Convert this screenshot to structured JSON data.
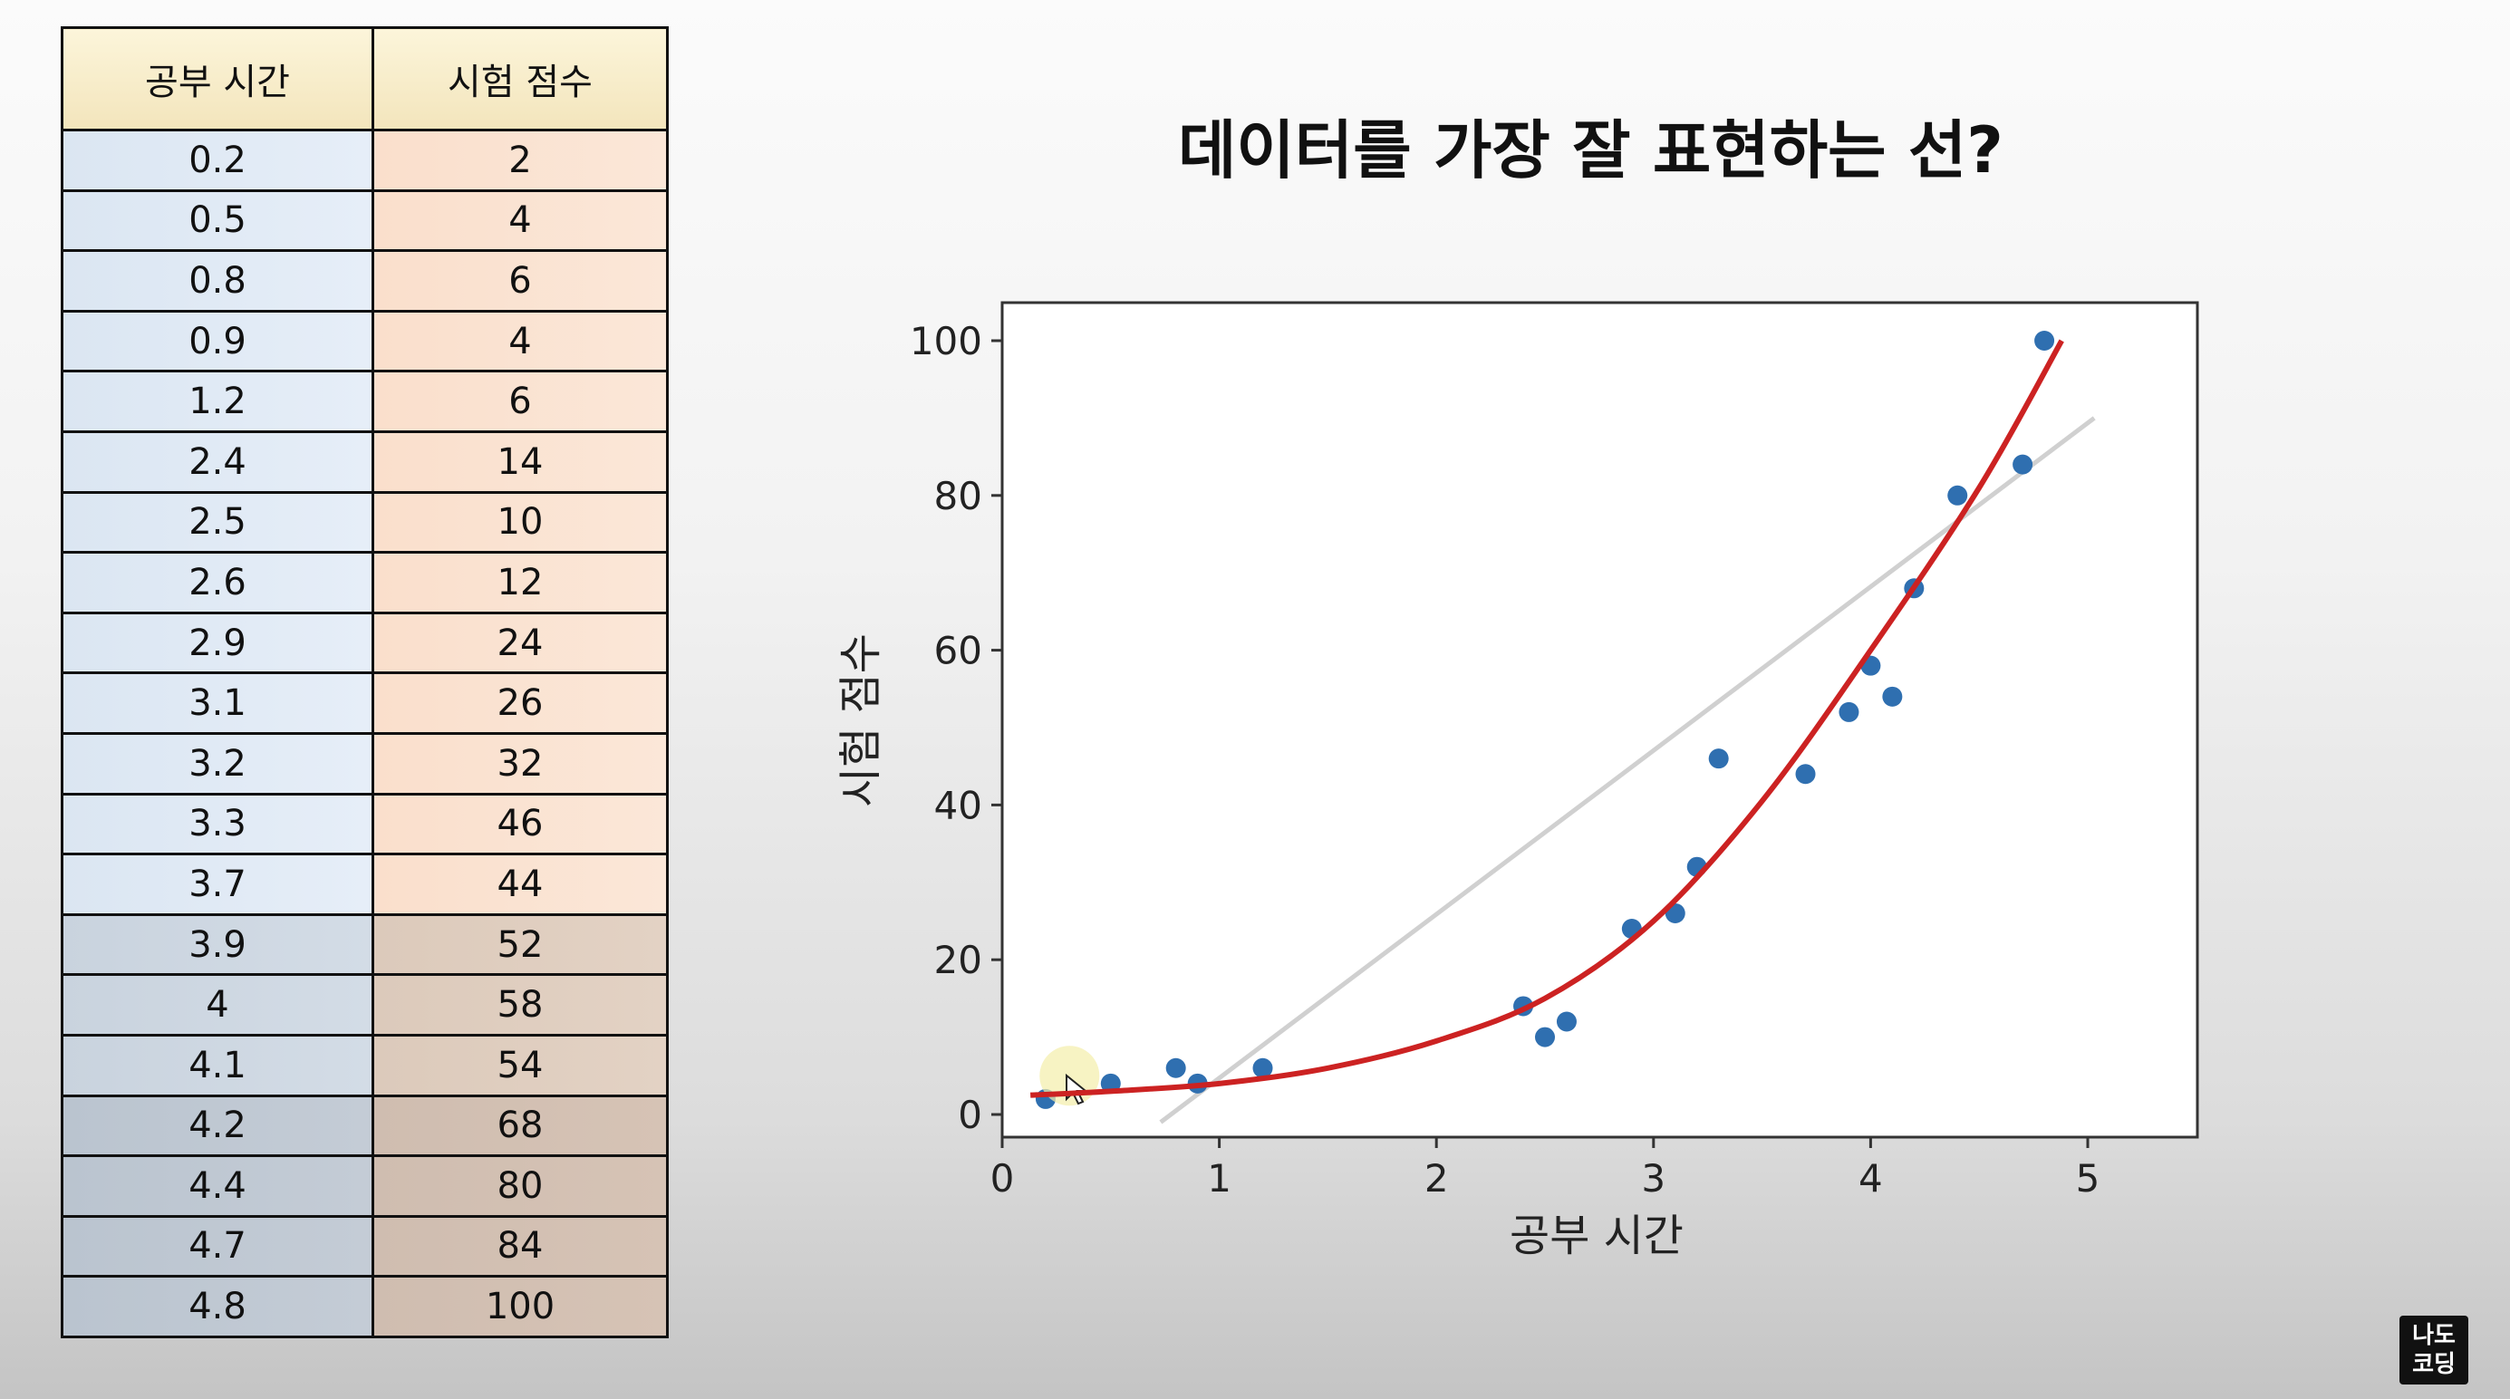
{
  "table": {
    "headers": [
      "공부 시간",
      "시험 점수"
    ],
    "rows": [
      [
        "0.2",
        "2"
      ],
      [
        "0.5",
        "4"
      ],
      [
        "0.8",
        "6"
      ],
      [
        "0.9",
        "4"
      ],
      [
        "1.2",
        "6"
      ],
      [
        "2.4",
        "14"
      ],
      [
        "2.5",
        "10"
      ],
      [
        "2.6",
        "12"
      ],
      [
        "2.9",
        "24"
      ],
      [
        "3.1",
        "26"
      ],
      [
        "3.2",
        "32"
      ],
      [
        "3.3",
        "46"
      ],
      [
        "3.7",
        "44"
      ],
      [
        "3.9",
        "52"
      ],
      [
        "4",
        "58"
      ],
      [
        "4.1",
        "54"
      ],
      [
        "4.2",
        "68"
      ],
      [
        "4.4",
        "80"
      ],
      [
        "4.7",
        "84"
      ],
      [
        "4.8",
        "100"
      ]
    ]
  },
  "chart_data": {
    "type": "scatter",
    "title": "데이터를 가장 잘 표현하는 선?",
    "xlabel": "공부 시간",
    "ylabel": "시험 점수",
    "xlim": [
      0,
      5.3
    ],
    "ylim": [
      -3,
      105
    ],
    "xticks": [
      0,
      1,
      2,
      3,
      4,
      5
    ],
    "yticks": [
      0,
      20,
      40,
      60,
      80,
      100
    ],
    "grid": false,
    "points": {
      "x": [
        0.2,
        0.5,
        0.8,
        0.9,
        1.2,
        2.4,
        2.5,
        2.6,
        2.9,
        3.1,
        3.2,
        3.3,
        3.7,
        3.9,
        4,
        4.1,
        4.2,
        4.4,
        4.7,
        4.8
      ],
      "y": [
        2,
        4,
        6,
        4,
        6,
        14,
        10,
        12,
        24,
        26,
        32,
        46,
        44,
        52,
        58,
        54,
        68,
        80,
        84,
        100
      ],
      "color": "#2f6fb0"
    },
    "linear_fit": {
      "x": [
        0.73,
        5.03
      ],
      "y": [
        -1,
        90
      ],
      "color": "#d0d0d0"
    },
    "curve_fit": {
      "x": [
        0.13,
        0.5,
        1.0,
        1.5,
        2.0,
        2.5,
        3.0,
        3.5,
        4.0,
        4.5,
        4.88
      ],
      "y": [
        2.5,
        3.0,
        4.0,
        6.0,
        9.5,
        15.0,
        25.0,
        40.5,
        60.0,
        81.0,
        100.0
      ],
      "color": "#cc2222"
    }
  },
  "logo": {
    "line1": "나도",
    "line2": "코딩"
  }
}
